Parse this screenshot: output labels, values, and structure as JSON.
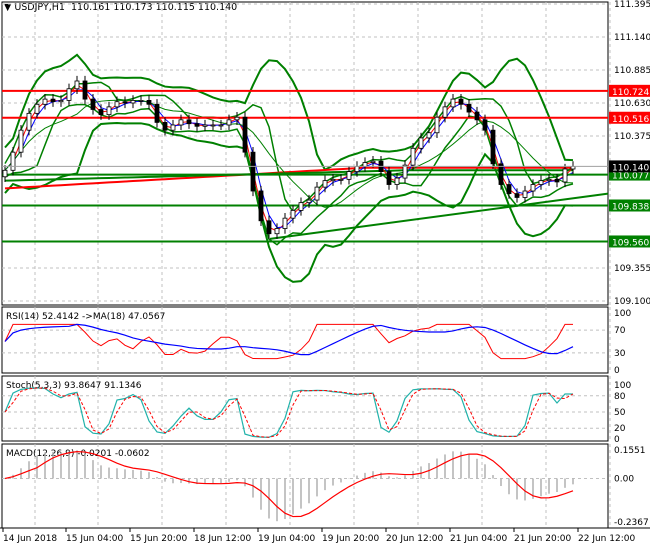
{
  "header": {
    "symbol": "USDJPY,H1",
    "ohlc": "110.161 110.173 110.115 110.140"
  },
  "chart_data": [
    {
      "type": "candlestick",
      "title": "USDJPY,H1",
      "ylim": [
        109.1,
        111.395
      ],
      "y_ticks": [
        "111.395",
        "111.140",
        "110.885",
        "110.630",
        "110.375",
        "109.355",
        "109.100"
      ],
      "x_ticks": [
        "14 Jun 2018",
        "15 Jun 04:00",
        "15 Jun 20:00",
        "18 Jun 12:00",
        "19 Jun 04:00",
        "19 Jun 20:00",
        "20 Jun 12:00",
        "21 Jun 04:00",
        "21 Jun 20:00",
        "22 Jun 12:00"
      ],
      "closes": [
        110.11,
        110.25,
        110.42,
        110.55,
        110.62,
        110.66,
        110.64,
        110.65,
        110.74,
        110.8,
        110.66,
        110.58,
        110.54,
        110.6,
        110.64,
        110.63,
        110.65,
        110.65,
        110.62,
        110.48,
        110.42,
        110.46,
        110.5,
        110.47,
        110.45,
        110.46,
        110.46,
        110.46,
        110.5,
        110.52,
        110.25,
        109.95,
        109.72,
        109.62,
        109.66,
        109.74,
        109.8,
        109.86,
        109.88,
        109.98,
        110.03,
        110.04,
        110.04,
        110.1,
        110.14,
        110.17,
        110.18,
        110.1,
        110.0,
        110.05,
        110.15,
        110.28,
        110.36,
        110.4,
        110.52,
        110.6,
        110.66,
        110.62,
        110.56,
        110.5,
        110.42,
        110.16,
        110.0,
        109.93,
        109.9,
        109.95,
        110.0,
        110.03,
        110.04,
        110.02,
        110.12,
        110.14
      ],
      "current_price": "110.140",
      "levels": [
        {
          "value": "110.724",
          "color": "#ff0000"
        },
        {
          "value": "110.516",
          "color": "#ff0000"
        },
        {
          "value": "110.077",
          "color": "#008000"
        },
        {
          "value": "109.838",
          "color": "#008000"
        },
        {
          "value": "109.560",
          "color": "#008000"
        }
      ],
      "trendline": [
        109.58,
        109.93
      ]
    },
    {
      "type": "line",
      "label": "RSI(14) 52.4142  ->MA(18) 47.0567",
      "ticks": [
        "100",
        "70",
        "30",
        "0"
      ],
      "ylim": [
        0,
        100
      ]
    },
    {
      "type": "line",
      "label": "Stoch(5,3,3) 93.8647 91.1346",
      "ticks": [
        "100",
        "80",
        "50",
        "20",
        "0"
      ],
      "ylim": [
        0,
        100
      ]
    },
    {
      "type": "bar",
      "label": "MACD(12,26,9) -0.0201 -0.0602",
      "ticks": [
        "0.1551",
        "0.00",
        "-0.2367"
      ],
      "ylim": [
        -0.2367,
        0.1551
      ]
    }
  ],
  "colors": {
    "bull": "#000000",
    "grid": "#c0c0c0",
    "bands": "#008000",
    "ma": "#ff0000",
    "signal": "#0000ff",
    "stoch": "#20b2aa"
  }
}
